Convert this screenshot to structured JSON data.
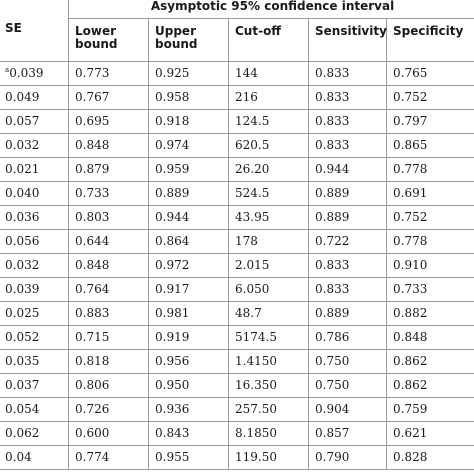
{
  "header": {
    "se": "SE",
    "group": "Asymptotic 95% confidence interval",
    "columns": [
      "Lower bound",
      "Upper bound",
      "Cut-off",
      "Sensitivity",
      "Specificity"
    ]
  },
  "rows": [
    {
      "marker": "a",
      "se": "0.039",
      "lower": "0.773",
      "upper": "0.925",
      "cutoff": "144",
      "sensitivity": "0.833",
      "specificity": "0.765"
    },
    {
      "marker": "",
      "se": "0.049",
      "lower": "0.767",
      "upper": "0.958",
      "cutoff": "216",
      "sensitivity": "0.833",
      "specificity": "0.752"
    },
    {
      "marker": "",
      "se": "0.057",
      "lower": "0.695",
      "upper": "0.918",
      "cutoff": "124.5",
      "sensitivity": "0.833",
      "specificity": "0.797"
    },
    {
      "marker": "",
      "se": "0.032",
      "lower": "0.848",
      "upper": "0.974",
      "cutoff": "620.5",
      "sensitivity": "0.833",
      "specificity": "0.865"
    },
    {
      "marker": "",
      "se": "0.021",
      "lower": "0.879",
      "upper": "0.959",
      "cutoff": "26.20",
      "sensitivity": "0.944",
      "specificity": "0.778"
    },
    {
      "marker": "",
      "se": "0.040",
      "lower": "0.733",
      "upper": "0.889",
      "cutoff": "524.5",
      "sensitivity": "0.889",
      "specificity": "0.691"
    },
    {
      "marker": "",
      "se": "0.036",
      "lower": "0.803",
      "upper": "0.944",
      "cutoff": "43.95",
      "sensitivity": "0.889",
      "specificity": "0.752"
    },
    {
      "marker": "",
      "se": "0.056",
      "lower": "0.644",
      "upper": "0.864",
      "cutoff": "178",
      "sensitivity": "0.722",
      "specificity": "0.778"
    },
    {
      "marker": "",
      "se": "0.032",
      "lower": "0.848",
      "upper": "0.972",
      "cutoff": "2.015",
      "sensitivity": "0.833",
      "specificity": "0.910"
    },
    {
      "marker": "",
      "se": "0.039",
      "lower": "0.764",
      "upper": "0.917",
      "cutoff": "6.050",
      "sensitivity": "0.833",
      "specificity": "0.733"
    },
    {
      "marker": "",
      "se": "0.025",
      "lower": "0.883",
      "upper": "0.981",
      "cutoff": "48.7",
      "sensitivity": "0.889",
      "specificity": "0.882"
    },
    {
      "marker": "",
      "se": "0.052",
      "lower": "0.715",
      "upper": "0.919",
      "cutoff": "5174.5",
      "sensitivity": "0.786",
      "specificity": "0.848"
    },
    {
      "marker": "",
      "se": "0.035",
      "lower": "0.818",
      "upper": "0.956",
      "cutoff": "1.4150",
      "sensitivity": "0.750",
      "specificity": "0.862"
    },
    {
      "marker": "",
      "se": "0.037",
      "lower": "0.806",
      "upper": "0.950",
      "cutoff": "16.350",
      "sensitivity": "0.750",
      "specificity": "0.862"
    },
    {
      "marker": "",
      "se": "0.054",
      "lower": "0.726",
      "upper": "0.936",
      "cutoff": "257.50",
      "sensitivity": "0.904",
      "specificity": "0.759"
    },
    {
      "marker": "",
      "se": "0.062",
      "lower": "0.600",
      "upper": "0.843",
      "cutoff": "8.1850",
      "sensitivity": "0.857",
      "specificity": "0.621"
    },
    {
      "marker": "",
      "se": "0.04",
      "lower": "0.774",
      "upper": "0.955",
      "cutoff": "119.50",
      "sensitivity": "0.790",
      "specificity": "0.828"
    }
  ]
}
